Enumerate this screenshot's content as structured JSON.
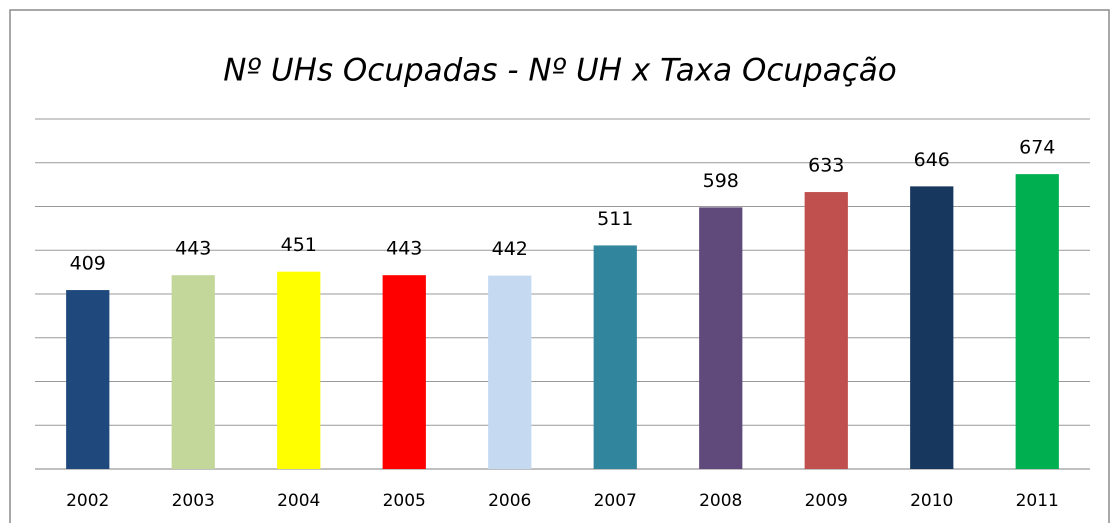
{
  "chart_data": {
    "type": "bar",
    "title": "Nº UHs Ocupadas - Nº UH x Taxa Ocupação",
    "categories": [
      "2002",
      "2003",
      "2004",
      "2005",
      "2006",
      "2007",
      "2008",
      "2009",
      "2010",
      "2011"
    ],
    "values": [
      409,
      443,
      451,
      443,
      442,
      511,
      598,
      633,
      646,
      674
    ],
    "colors": [
      "#1f497d",
      "#c4d79b",
      "#ffff00",
      "#ff0000",
      "#c5d9f1",
      "#31859c",
      "#604a7b",
      "#c0504d",
      "#17375e",
      "#00b050"
    ],
    "ylim": [
      0,
      800
    ],
    "yticks": [
      0,
      100,
      200,
      300,
      400,
      500,
      600,
      700,
      800
    ],
    "grid": true
  }
}
